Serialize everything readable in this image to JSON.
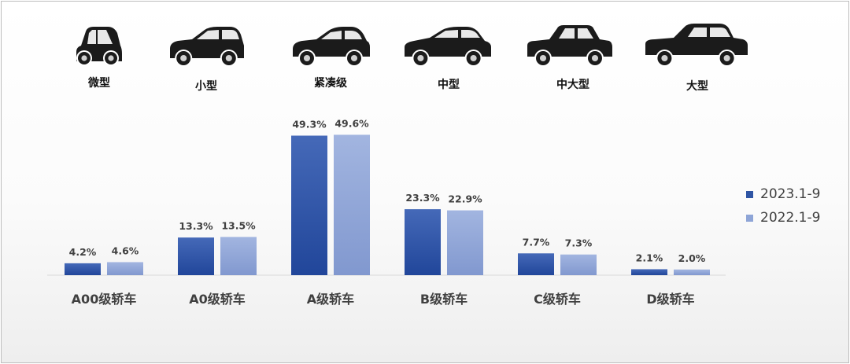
{
  "chart_data": {
    "type": "bar",
    "categories": [
      "A00级轿车",
      "A0级轿车",
      "A级轿车",
      "B级轿车",
      "C级轿车",
      "D级轿车"
    ],
    "series": [
      {
        "name": "2023.1-9",
        "values": [
          4.2,
          13.3,
          49.3,
          23.3,
          7.7,
          2.1
        ],
        "labels": [
          "4.2%",
          "13.3%",
          "49.3%",
          "23.3%",
          "7.7%",
          "2.1%"
        ],
        "color": "#2f55a4"
      },
      {
        "name": "2022.1-9",
        "values": [
          4.6,
          13.5,
          49.6,
          22.9,
          7.3,
          2.0
        ],
        "labels": [
          "4.6%",
          "13.5%",
          "49.6%",
          "22.9%",
          "7.3%",
          "2.0%"
        ],
        "color": "#8ea5d7"
      }
    ],
    "ylim": [
      0,
      50
    ],
    "grid": false,
    "legend_position": "right",
    "title": "",
    "xlabel": "",
    "ylabel": ""
  },
  "car_types": [
    {
      "label": "微型",
      "icon": "micro-car-icon"
    },
    {
      "label": "小型",
      "icon": "hatchback-car-icon"
    },
    {
      "label": "紧凑级",
      "icon": "compact-sedan-icon"
    },
    {
      "label": "中型",
      "icon": "midsize-sedan-icon"
    },
    {
      "label": "中大型",
      "icon": "large-sedan-icon"
    },
    {
      "label": "大型",
      "icon": "fullsize-sedan-icon"
    }
  ],
  "legend": {
    "items": [
      {
        "label": "2023.1-9",
        "color": "#2f55a4"
      },
      {
        "label": "2022.1-9",
        "color": "#8ea5d7"
      }
    ]
  }
}
